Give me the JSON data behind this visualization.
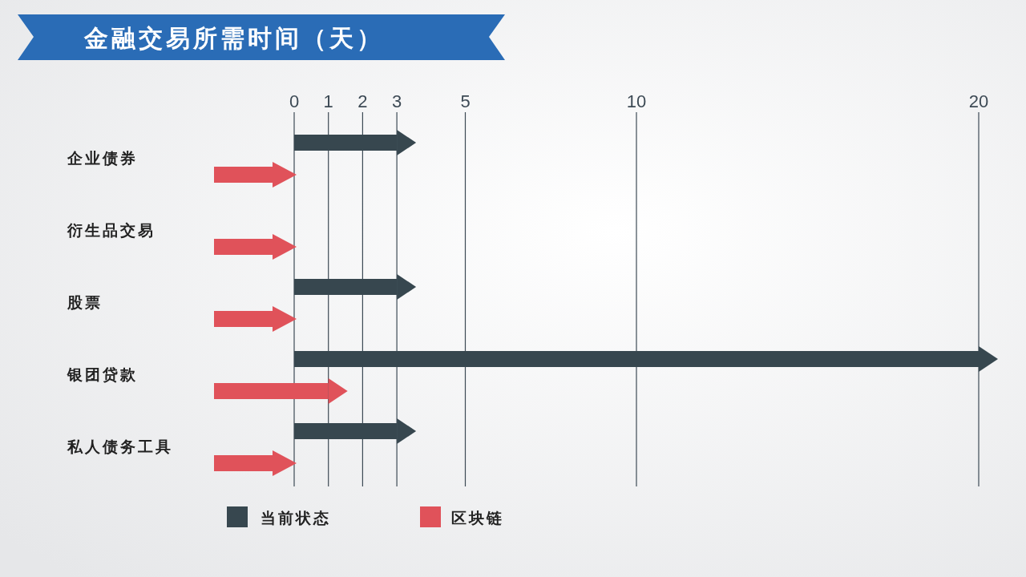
{
  "chart_data": {
    "type": "bar",
    "orientation": "horizontal",
    "title": "金融交易所需时间（天）",
    "categories": [
      "企业债券",
      "衍生品交易",
      "股票",
      "银团贷款",
      "私人债务工具"
    ],
    "series": [
      {
        "name": "当前状态",
        "color": "#37474f",
        "values": [
          3,
          null,
          3,
          20,
          3
        ]
      },
      {
        "name": "区块链",
        "color": "#e0525a",
        "values": [
          0,
          0,
          0,
          1,
          0
        ]
      }
    ],
    "xlim": [
      0,
      20
    ],
    "xticks": [
      0,
      1,
      2,
      3,
      5,
      10,
      20
    ],
    "grid": "x",
    "legend": "bottom"
  }
}
